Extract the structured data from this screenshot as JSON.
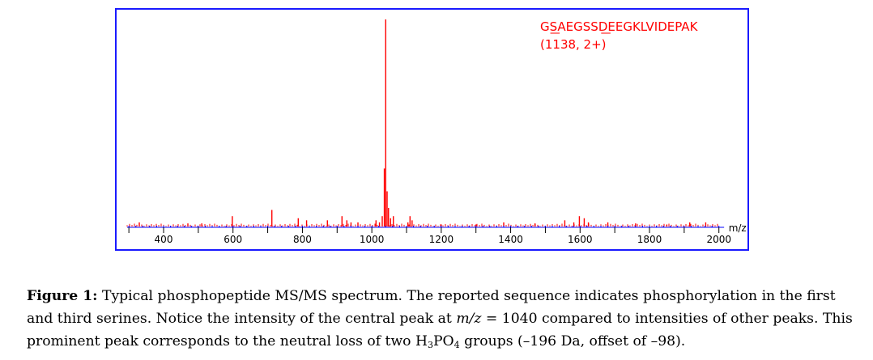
{
  "chart_data": {
    "type": "bar",
    "title_lines": [
      "GSAEGSSDEEGKLVIDEPAK",
      "(1138, 2+)"
    ],
    "title_underlined_chars": [
      1,
      6
    ],
    "xlabel": "m/z",
    "ylabel": "",
    "xlim": [
      295,
      2015
    ],
    "ylim": [
      0,
      100
    ],
    "x_ticks": [
      400,
      600,
      800,
      1000,
      1200,
      1400,
      1600,
      1800,
      2000
    ],
    "colors": {
      "peaks": "#ff0000",
      "axis": "#0000ff",
      "frame": "#1a1aff"
    },
    "grid": false,
    "peaks": [
      {
        "x": 1040,
        "y": 100
      },
      {
        "x": 1036,
        "y": 28
      },
      {
        "x": 1044,
        "y": 17
      },
      {
        "x": 1048,
        "y": 9
      },
      {
        "x": 1030,
        "y": 5
      },
      {
        "x": 1054,
        "y": 4
      },
      {
        "x": 1062,
        "y": 5
      },
      {
        "x": 1022,
        "y": 2
      },
      {
        "x": 1012,
        "y": 3
      },
      {
        "x": 1110,
        "y": 5
      },
      {
        "x": 1116,
        "y": 3
      },
      {
        "x": 1104,
        "y": 2
      },
      {
        "x": 712,
        "y": 8
      },
      {
        "x": 598,
        "y": 5
      },
      {
        "x": 788,
        "y": 4
      },
      {
        "x": 812,
        "y": 3
      },
      {
        "x": 872,
        "y": 3
      },
      {
        "x": 914,
        "y": 5
      },
      {
        "x": 928,
        "y": 3
      },
      {
        "x": 940,
        "y": 2
      },
      {
        "x": 960,
        "y": 2
      },
      {
        "x": 1380,
        "y": 2
      },
      {
        "x": 1556,
        "y": 3
      },
      {
        "x": 1582,
        "y": 2
      },
      {
        "x": 1598,
        "y": 5
      },
      {
        "x": 1612,
        "y": 4
      },
      {
        "x": 1624,
        "y": 2
      },
      {
        "x": 1680,
        "y": 2
      },
      {
        "x": 1916,
        "y": 2
      },
      {
        "x": 1962,
        "y": 2
      },
      {
        "x": 330,
        "y": 2
      },
      {
        "x": 470,
        "y": 1.5
      },
      {
        "x": 510,
        "y": 1.5
      },
      {
        "x": 1200,
        "y": 1
      },
      {
        "x": 1300,
        "y": 1
      },
      {
        "x": 1470,
        "y": 1.5
      },
      {
        "x": 1760,
        "y": 1.5
      },
      {
        "x": 1850,
        "y": 1
      }
    ]
  },
  "caption": {
    "label": "Figure 1:",
    "text_1": " Typical phosphopeptide MS/MS spectrum. The reported sequence indicates phosphorylation in the first and third serines. Notice the intensity of the central peak at ",
    "mz_symbol": "m/z",
    "text_2": " = 1040 compared to intensities of other peaks. This prominent peak corresponds to the neutral loss of two H",
    "sub_1": "3",
    "text_3": "PO",
    "sub_2": "4",
    "text_4": " groups   (–196 Da, offset of –98)."
  }
}
